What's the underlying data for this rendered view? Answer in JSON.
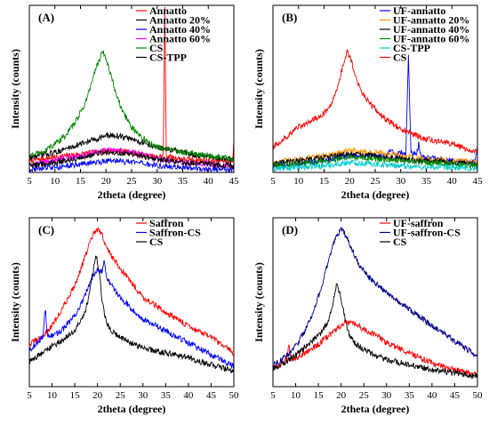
{
  "colors": {
    "red": "#ff0000",
    "blue": "#0000ff",
    "orange": "#ff9900",
    "magenta": "#ff00ff",
    "green": "#008800",
    "black": "#000000",
    "cyan": "#00cccc",
    "navy": "#000088"
  },
  "chart_data": [
    {
      "type": "line",
      "panel": "(A)",
      "xlabel": "2theta (degree)",
      "ylabel": "Intensity (counts)",
      "xlim": [
        5,
        45
      ],
      "xticks": [
        5,
        10,
        15,
        20,
        25,
        30,
        35,
        40,
        45
      ],
      "legend_position": "top-right",
      "series": [
        {
          "name": "Annatto",
          "color": "red",
          "x": [
            5,
            10,
            15,
            18,
            20,
            22,
            25,
            28,
            30,
            31.2,
            31.5,
            31.8,
            33,
            35,
            40,
            44.8,
            45
          ],
          "y": [
            0.07,
            0.09,
            0.11,
            0.12,
            0.13,
            0.13,
            0.12,
            0.1,
            0.09,
            0.1,
            0.98,
            0.1,
            0.09,
            0.08,
            0.07,
            0.07,
            0.2
          ]
        },
        {
          "name": "Annatto 20%",
          "color": "black",
          "x": [
            5,
            10,
            15,
            18,
            20,
            22,
            25,
            28,
            30,
            35,
            40,
            45
          ],
          "y": [
            0.09,
            0.12,
            0.17,
            0.2,
            0.22,
            0.22,
            0.2,
            0.17,
            0.15,
            0.12,
            0.09,
            0.08
          ]
        },
        {
          "name": "Annatto 40%",
          "color": "blue",
          "x": [
            5,
            10,
            15,
            18,
            20,
            22,
            25,
            28,
            30,
            35,
            40,
            45
          ],
          "y": [
            0.02,
            0.03,
            0.05,
            0.06,
            0.07,
            0.07,
            0.06,
            0.05,
            0.04,
            0.03,
            0.02,
            0.02
          ]
        },
        {
          "name": "Annatto 60%",
          "color": "magenta",
          "x": [
            5,
            10,
            15,
            18,
            20,
            22,
            25,
            28,
            30,
            35,
            40,
            45
          ],
          "y": [
            0.05,
            0.07,
            0.1,
            0.12,
            0.13,
            0.13,
            0.12,
            0.1,
            0.08,
            0.06,
            0.05,
            0.04
          ]
        },
        {
          "name": "CS",
          "color": "green",
          "x": [
            5,
            8,
            10,
            12,
            14,
            16,
            17,
            18,
            19,
            19.5,
            20,
            21,
            22,
            23,
            25,
            27,
            30,
            35,
            40,
            45
          ],
          "y": [
            0.1,
            0.13,
            0.17,
            0.22,
            0.3,
            0.42,
            0.52,
            0.62,
            0.7,
            0.72,
            0.68,
            0.58,
            0.47,
            0.38,
            0.27,
            0.21,
            0.15,
            0.12,
            0.1,
            0.08
          ]
        },
        {
          "name": "CS-TPP",
          "color": "black",
          "x": [
            5,
            10,
            15,
            18,
            20,
            22,
            25,
            28,
            30,
            35,
            40,
            45
          ],
          "y": [
            0.04,
            0.06,
            0.09,
            0.11,
            0.12,
            0.12,
            0.11,
            0.09,
            0.08,
            0.06,
            0.05,
            0.04
          ]
        }
      ]
    },
    {
      "type": "line",
      "panel": "(B)",
      "xlabel": "2theta (degree)",
      "ylabel": "Intensity (counts)",
      "xlim": [
        5,
        45
      ],
      "xticks": [
        5,
        10,
        15,
        20,
        25,
        30,
        35,
        40,
        45
      ],
      "legend_position": "top-right",
      "series": [
        {
          "name": "UF-annatto",
          "color": "blue",
          "x": [
            5,
            10,
            15,
            20,
            25,
            27,
            28,
            29,
            30,
            31,
            31.5,
            32,
            33,
            33.5,
            34,
            35,
            40,
            44.5,
            45
          ],
          "y": [
            0.04,
            0.05,
            0.07,
            0.1,
            0.1,
            0.1,
            0.13,
            0.1,
            0.12,
            0.11,
            0.7,
            0.12,
            0.1,
            0.17,
            0.1,
            0.09,
            0.07,
            0.06,
            0.15
          ]
        },
        {
          "name": "UF-annatto 20%",
          "color": "orange",
          "x": [
            5,
            10,
            15,
            20,
            25,
            30,
            35,
            40,
            45
          ],
          "y": [
            0.06,
            0.08,
            0.1,
            0.13,
            0.12,
            0.1,
            0.08,
            0.07,
            0.06
          ]
        },
        {
          "name": "UF-annatto 40%",
          "color": "black",
          "x": [
            5,
            10,
            15,
            20,
            25,
            30,
            35,
            40,
            45
          ],
          "y": [
            0.05,
            0.07,
            0.09,
            0.11,
            0.1,
            0.08,
            0.07,
            0.06,
            0.05
          ]
        },
        {
          "name": "UF-annatto 60%",
          "color": "green",
          "x": [
            5,
            10,
            15,
            20,
            25,
            30,
            35,
            40,
            45
          ],
          "y": [
            0.04,
            0.05,
            0.07,
            0.09,
            0.08,
            0.07,
            0.06,
            0.05,
            0.04
          ]
        },
        {
          "name": "CS-TPP",
          "color": "cyan",
          "x": [
            5,
            10,
            15,
            20,
            25,
            30,
            35,
            40,
            45
          ],
          "y": [
            0.02,
            0.03,
            0.04,
            0.06,
            0.05,
            0.04,
            0.03,
            0.03,
            0.02
          ]
        },
        {
          "name": "CS",
          "color": "red",
          "x": [
            5,
            8,
            10,
            12,
            14,
            16,
            17,
            18,
            19,
            19.5,
            20,
            21,
            22,
            23,
            25,
            27,
            30,
            35,
            40,
            45
          ],
          "y": [
            0.15,
            0.22,
            0.27,
            0.3,
            0.33,
            0.38,
            0.45,
            0.55,
            0.68,
            0.72,
            0.7,
            0.6,
            0.5,
            0.45,
            0.38,
            0.32,
            0.26,
            0.2,
            0.17,
            0.12
          ]
        }
      ]
    },
    {
      "type": "line",
      "panel": "(C)",
      "xlabel": "2theta (degree)",
      "ylabel": "Intensity (counts)",
      "xlim": [
        5,
        50
      ],
      "xticks": [
        5,
        10,
        15,
        20,
        25,
        30,
        35,
        40,
        45,
        50
      ],
      "legend_position": "top-right",
      "series": [
        {
          "name": "Saffron",
          "color": "red",
          "x": [
            5,
            8,
            10,
            12,
            15,
            17,
            19,
            20,
            21,
            22,
            25,
            28,
            30,
            35,
            40,
            45,
            50
          ],
          "y": [
            0.25,
            0.3,
            0.36,
            0.45,
            0.6,
            0.75,
            0.9,
            0.93,
            0.9,
            0.82,
            0.7,
            0.6,
            0.53,
            0.44,
            0.36,
            0.29,
            0.2
          ]
        },
        {
          "name": "Saffron-CS",
          "color": "blue",
          "x": [
            5,
            7,
            8,
            8.5,
            9,
            10,
            12,
            15,
            17,
            19,
            20,
            21,
            21.5,
            22,
            25,
            28,
            30,
            35,
            40,
            45,
            50
          ],
          "y": [
            0.22,
            0.26,
            0.3,
            0.47,
            0.3,
            0.3,
            0.33,
            0.42,
            0.52,
            0.66,
            0.7,
            0.68,
            0.76,
            0.64,
            0.53,
            0.45,
            0.4,
            0.33,
            0.26,
            0.19,
            0.12
          ]
        },
        {
          "name": "CS",
          "color": "black",
          "x": [
            5,
            8,
            10,
            12,
            15,
            17,
            18,
            19,
            19.7,
            20.5,
            21,
            22,
            23,
            25,
            28,
            30,
            35,
            40,
            45,
            50
          ],
          "y": [
            0.15,
            0.2,
            0.24,
            0.27,
            0.33,
            0.42,
            0.52,
            0.68,
            0.78,
            0.66,
            0.5,
            0.38,
            0.33,
            0.29,
            0.25,
            0.23,
            0.2,
            0.17,
            0.13,
            0.09
          ]
        }
      ]
    },
    {
      "type": "line",
      "panel": "(D)",
      "xlabel": "2theta (degree)",
      "ylabel": "Intensity (counts)",
      "xlim": [
        5,
        50
      ],
      "xticks": [
        5,
        10,
        15,
        20,
        25,
        30,
        35,
        40,
        45,
        50
      ],
      "legend_position": "top-right",
      "series": [
        {
          "name": "UF-saffron",
          "color": "red",
          "x": [
            5,
            7,
            8,
            8.5,
            9,
            10,
            12,
            15,
            18,
            20,
            21,
            23,
            25,
            28,
            30,
            35,
            40,
            45,
            50
          ],
          "y": [
            0.1,
            0.14,
            0.16,
            0.26,
            0.16,
            0.17,
            0.2,
            0.25,
            0.32,
            0.36,
            0.38,
            0.37,
            0.34,
            0.3,
            0.26,
            0.2,
            0.14,
            0.1,
            0.07
          ]
        },
        {
          "name": "UF-saffron-CS",
          "color": "navy",
          "x": [
            5,
            8,
            10,
            12,
            14,
            16,
            18,
            19,
            20,
            21,
            22,
            24,
            26,
            28,
            30,
            35,
            40,
            45,
            50
          ],
          "y": [
            0.13,
            0.18,
            0.24,
            0.33,
            0.45,
            0.62,
            0.82,
            0.9,
            0.93,
            0.9,
            0.83,
            0.72,
            0.65,
            0.6,
            0.56,
            0.46,
            0.36,
            0.27,
            0.18
          ]
        },
        {
          "name": "CS",
          "color": "black",
          "x": [
            5,
            8,
            10,
            12,
            15,
            17,
            18,
            19,
            19.7,
            20.5,
            21,
            22,
            23,
            25,
            28,
            30,
            35,
            40,
            45,
            50
          ],
          "y": [
            0.1,
            0.15,
            0.19,
            0.23,
            0.3,
            0.38,
            0.47,
            0.6,
            0.56,
            0.46,
            0.38,
            0.3,
            0.26,
            0.22,
            0.18,
            0.16,
            0.13,
            0.1,
            0.08,
            0.06
          ]
        }
      ]
    }
  ]
}
